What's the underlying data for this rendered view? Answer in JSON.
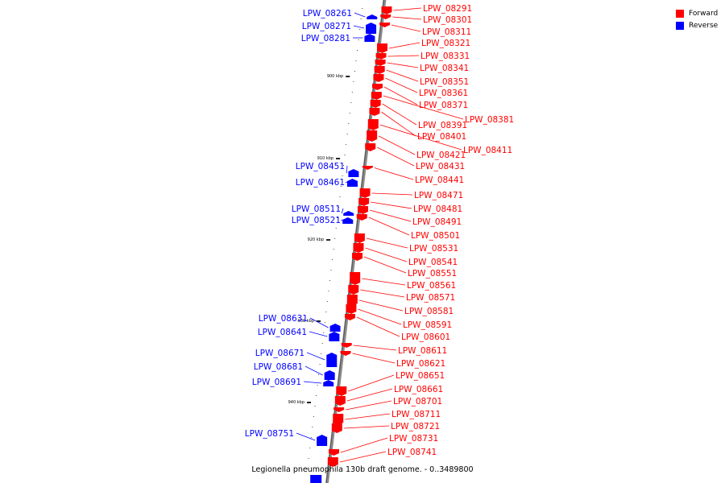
{
  "caption": "Legionella pneumophila 130b draft genome. - 0..3489800",
  "legend": {
    "forward": {
      "label": "Forward",
      "color": "#ff0000"
    },
    "reverse": {
      "label": "Reverse",
      "color": "#0000ff"
    }
  },
  "ticks": [
    "900 kbp",
    "910 kbp",
    "920 kbp",
    "930 kbp",
    "940 kbp"
  ],
  "forward_genes": [
    "LPW_08291",
    "LPW_08301",
    "LPW_08311",
    "LPW_08321",
    "LPW_08331",
    "LPW_08341",
    "LPW_08351",
    "LPW_08361",
    "LPW_08371",
    "LPW_08381",
    "LPW_08391",
    "LPW_08401",
    "LPW_08411",
    "LPW_08421",
    "LPW_08431",
    "LPW_08441",
    "LPW_08471",
    "LPW_08481",
    "LPW_08491",
    "LPW_08501",
    "LPW_08531",
    "LPW_08541",
    "LPW_08551",
    "LPW_08561",
    "LPW_08571",
    "LPW_08581",
    "LPW_08591",
    "LPW_08601",
    "LPW_08611",
    "LPW_08621",
    "LPW_08651",
    "LPW_08661",
    "LPW_08701",
    "LPW_08711",
    "LPW_08721",
    "LPW_08731",
    "LPW_08741"
  ],
  "reverse_genes": [
    "LPW_08261",
    "LPW_08271",
    "LPW_08281",
    "LPW_08451",
    "LPW_08461",
    "LPW_08511",
    "LPW_08521",
    "LPW_08631",
    "LPW_08641",
    "LPW_08671",
    "LPW_08681",
    "LPW_08691",
    "LPW_08751"
  ]
}
